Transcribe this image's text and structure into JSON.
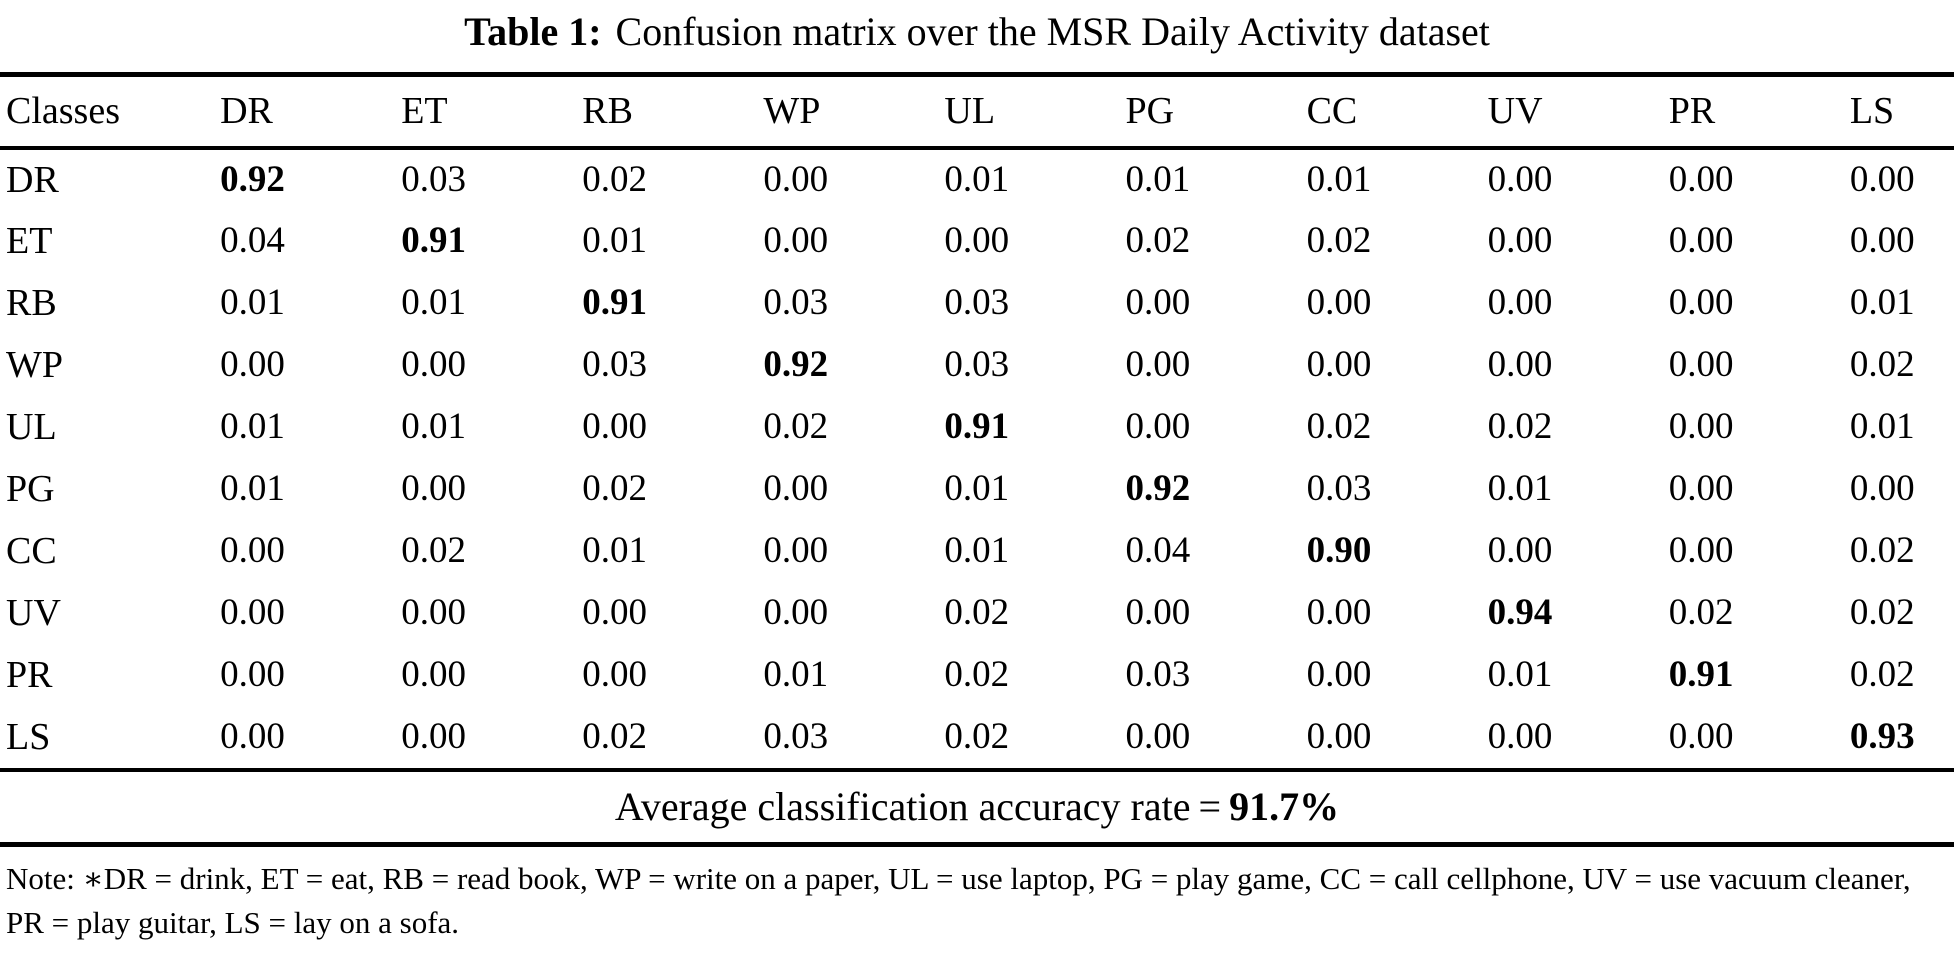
{
  "caption": {
    "label": "Table 1:",
    "text": "Confusion matrix over the MSR Daily Activity dataset"
  },
  "table": {
    "corner_header": "Classes",
    "columns": [
      "DR",
      "ET",
      "RB",
      "WP",
      "UL",
      "PG",
      "CC",
      "UV",
      "PR",
      "LS"
    ],
    "rows": [
      {
        "label": "DR",
        "values": [
          "0.92",
          "0.03",
          "0.02",
          "0.00",
          "0.01",
          "0.01",
          "0.01",
          "0.00",
          "0.00",
          "0.00"
        ]
      },
      {
        "label": "ET",
        "values": [
          "0.04",
          "0.91",
          "0.01",
          "0.00",
          "0.00",
          "0.02",
          "0.02",
          "0.00",
          "0.00",
          "0.00"
        ]
      },
      {
        "label": "RB",
        "values": [
          "0.01",
          "0.01",
          "0.91",
          "0.03",
          "0.03",
          "0.00",
          "0.00",
          "0.00",
          "0.00",
          "0.01"
        ]
      },
      {
        "label": "WP",
        "values": [
          "0.00",
          "0.00",
          "0.03",
          "0.92",
          "0.03",
          "0.00",
          "0.00",
          "0.00",
          "0.00",
          "0.02"
        ]
      },
      {
        "label": "UL",
        "values": [
          "0.01",
          "0.01",
          "0.00",
          "0.02",
          "0.91",
          "0.00",
          "0.02",
          "0.02",
          "0.00",
          "0.01"
        ]
      },
      {
        "label": "PG",
        "values": [
          "0.01",
          "0.00",
          "0.02",
          "0.00",
          "0.01",
          "0.92",
          "0.03",
          "0.01",
          "0.00",
          "0.00"
        ]
      },
      {
        "label": "CC",
        "values": [
          "0.00",
          "0.02",
          "0.01",
          "0.00",
          "0.01",
          "0.04",
          "0.90",
          "0.00",
          "0.00",
          "0.02"
        ]
      },
      {
        "label": "UV",
        "values": [
          "0.00",
          "0.00",
          "0.00",
          "0.00",
          "0.02",
          "0.00",
          "0.00",
          "0.94",
          "0.02",
          "0.02"
        ]
      },
      {
        "label": "PR",
        "values": [
          "0.00",
          "0.00",
          "0.00",
          "0.01",
          "0.02",
          "0.03",
          "0.00",
          "0.01",
          "0.91",
          "0.02"
        ]
      },
      {
        "label": "LS",
        "values": [
          "0.00",
          "0.00",
          "0.02",
          "0.03",
          "0.02",
          "0.00",
          "0.00",
          "0.00",
          "0.00",
          "0.93"
        ]
      }
    ]
  },
  "summary": {
    "label": "Average classification accuracy rate",
    "equals": "=",
    "value": "91.7%"
  },
  "note": "Note: ∗DR = drink, ET = eat, RB = read book, WP = write on a paper, UL = use laptop, PG = play game, CC = call cellphone, UV = use vacuum cleaner, PR = play guitar, LS = lay on a sofa."
}
